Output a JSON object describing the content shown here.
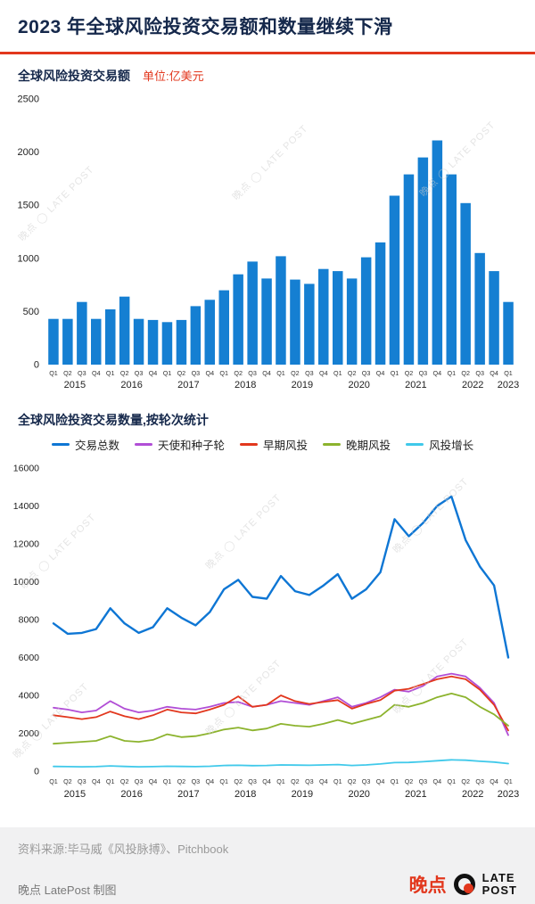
{
  "header": {
    "title": "2023 年全球风险投资交易额和数量继续下滑"
  },
  "watermark": "晚点 ◯ LATE POST",
  "colors": {
    "accent_red": "#e2371d",
    "title_navy": "#15284b",
    "bar_blue": "#157fd2",
    "footer_bg": "#f1f1f2"
  },
  "footer": {
    "source": "资料来源:毕马威《风投脉搏》、Pitchbook",
    "credit": "晚点 LatePost 制图",
    "logo_cn": "晚点",
    "logo_en_line1": "LATE",
    "logo_en_line2": "POST"
  },
  "chart_data": [
    {
      "type": "bar",
      "title": "全球风险投资交易额",
      "unit": "单位:亿美元",
      "bar_color": "#157fd2",
      "ylim": [
        0,
        2500
      ],
      "yticks": [
        0,
        500,
        1000,
        1500,
        2000,
        2500
      ],
      "x_quarters": [
        "Q1",
        "Q2",
        "Q3",
        "Q4",
        "Q1",
        "Q2",
        "Q3",
        "Q4",
        "Q1",
        "Q2",
        "Q3",
        "Q4",
        "Q1",
        "Q2",
        "Q3",
        "Q4",
        "Q1",
        "Q2",
        "Q3",
        "Q4",
        "Q1",
        "Q2",
        "Q3",
        "Q4",
        "Q1",
        "Q2",
        "Q3",
        "Q4",
        "Q1",
        "Q2",
        "Q3",
        "Q4",
        "Q1"
      ],
      "years": [
        {
          "label": "2015",
          "from": 0,
          "to": 3
        },
        {
          "label": "2016",
          "from": 4,
          "to": 7
        },
        {
          "label": "2017",
          "from": 8,
          "to": 11
        },
        {
          "label": "2018",
          "from": 12,
          "to": 15
        },
        {
          "label": "2019",
          "from": 16,
          "to": 19
        },
        {
          "label": "2020",
          "from": 20,
          "to": 23
        },
        {
          "label": "2021",
          "from": 24,
          "to": 27
        },
        {
          "label": "2022",
          "from": 28,
          "to": 31
        },
        {
          "label": "2023",
          "from": 32,
          "to": 32
        }
      ],
      "values": [
        430,
        430,
        590,
        430,
        520,
        640,
        430,
        420,
        400,
        420,
        550,
        610,
        700,
        850,
        970,
        810,
        1020,
        800,
        760,
        900,
        880,
        810,
        1010,
        1150,
        1590,
        1790,
        1950,
        2110,
        1790,
        1520,
        1050,
        880,
        590
      ]
    },
    {
      "type": "line",
      "title": "全球风险投资交易数量,按轮次统计",
      "ylim": [
        0,
        16000
      ],
      "yticks": [
        0,
        2000,
        4000,
        6000,
        8000,
        10000,
        12000,
        14000,
        16000
      ],
      "x_quarters": [
        "Q1",
        "Q2",
        "Q3",
        "Q4",
        "Q1",
        "Q2",
        "Q3",
        "Q4",
        "Q1",
        "Q2",
        "Q3",
        "Q4",
        "Q1",
        "Q2",
        "Q3",
        "Q4",
        "Q1",
        "Q2",
        "Q3",
        "Q4",
        "Q1",
        "Q2",
        "Q3",
        "Q4",
        "Q1",
        "Q2",
        "Q3",
        "Q4",
        "Q1",
        "Q2",
        "Q3",
        "Q4",
        "Q1"
      ],
      "years": [
        {
          "label": "2015",
          "from": 0,
          "to": 3
        },
        {
          "label": "2016",
          "from": 4,
          "to": 7
        },
        {
          "label": "2017",
          "from": 8,
          "to": 11
        },
        {
          "label": "2018",
          "from": 12,
          "to": 15
        },
        {
          "label": "2019",
          "from": 16,
          "to": 19
        },
        {
          "label": "2020",
          "from": 20,
          "to": 23
        },
        {
          "label": "2021",
          "from": 24,
          "to": 27
        },
        {
          "label": "2022",
          "from": 28,
          "to": 31
        },
        {
          "label": "2023",
          "from": 32,
          "to": 32
        }
      ],
      "series": [
        {
          "name": "交易总数",
          "color": "#0e76d4",
          "values": [
            7800,
            7250,
            7300,
            7500,
            8600,
            7800,
            7300,
            7600,
            8600,
            8100,
            7700,
            8400,
            9600,
            10100,
            9200,
            9100,
            10300,
            9500,
            9300,
            9800,
            10400,
            9100,
            9600,
            10500,
            13300,
            12400,
            13100,
            14000,
            14500,
            12200,
            10800,
            9800,
            6000
          ]
        },
        {
          "name": "天使和种子轮",
          "color": "#b14ed6",
          "values": [
            3350,
            3250,
            3100,
            3200,
            3700,
            3300,
            3100,
            3200,
            3400,
            3300,
            3250,
            3400,
            3600,
            3650,
            3400,
            3500,
            3700,
            3600,
            3500,
            3700,
            3900,
            3400,
            3600,
            3900,
            4300,
            4200,
            4500,
            5000,
            5150,
            5000,
            4400,
            3600,
            1900
          ]
        },
        {
          "name": "早期风投",
          "color": "#e2371d",
          "values": [
            2950,
            2850,
            2750,
            2850,
            3150,
            2900,
            2750,
            2950,
            3250,
            3100,
            3050,
            3250,
            3500,
            3950,
            3400,
            3500,
            4000,
            3700,
            3550,
            3650,
            3750,
            3300,
            3550,
            3750,
            4250,
            4350,
            4600,
            4850,
            5000,
            4850,
            4300,
            3500,
            2150
          ]
        },
        {
          "name": "晚期风投",
          "color": "#8cb32d",
          "values": [
            1450,
            1500,
            1550,
            1600,
            1850,
            1600,
            1550,
            1650,
            1950,
            1800,
            1850,
            2000,
            2200,
            2300,
            2150,
            2250,
            2500,
            2400,
            2350,
            2500,
            2700,
            2500,
            2700,
            2900,
            3500,
            3400,
            3600,
            3900,
            4100,
            3900,
            3400,
            3000,
            2400
          ]
        },
        {
          "name": "风投增长",
          "color": "#40c9ea",
          "values": [
            250,
            240,
            230,
            240,
            280,
            250,
            230,
            240,
            260,
            250,
            240,
            260,
            300,
            310,
            290,
            300,
            330,
            320,
            310,
            330,
            350,
            300,
            330,
            380,
            450,
            460,
            500,
            550,
            600,
            580,
            520,
            480,
            400
          ]
        }
      ]
    }
  ]
}
